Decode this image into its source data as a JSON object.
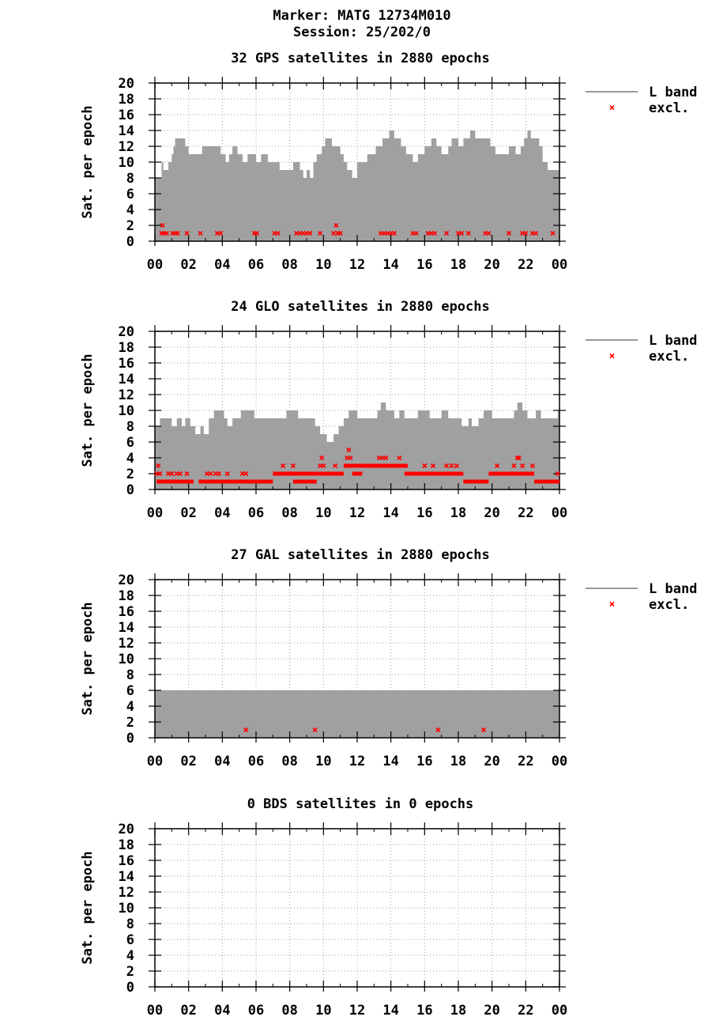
{
  "header": {
    "marker": "Marker: MATG 12734M010",
    "session": "Session: 25/202/0"
  },
  "colors": {
    "fill": "#a0a0a0",
    "excl": "#ff0000",
    "grid": "#a0a0a0",
    "axis": "#000000"
  },
  "legend": {
    "band_label": "L band",
    "excl_label": "excl."
  },
  "chart_data": [
    {
      "type": "area",
      "system": "GPS",
      "title": "32 GPS satellites in 2880 epochs",
      "ylabel": "Sat. per epoch",
      "xlabel": "",
      "xlim": [
        0,
        24
      ],
      "ylim": [
        0,
        20
      ],
      "xticks": [
        "00",
        "02",
        "04",
        "06",
        "08",
        "10",
        "12",
        "14",
        "16",
        "18",
        "20",
        "22",
        "00"
      ],
      "yticks": [
        "0",
        "2",
        "4",
        "6",
        "8",
        "10",
        "12",
        "14",
        "16",
        "18",
        "20"
      ],
      "show_legend": true,
      "band": [
        [
          0,
          8
        ],
        [
          0.4,
          10
        ],
        [
          0.5,
          9
        ],
        [
          0.8,
          10
        ],
        [
          1.0,
          11
        ],
        [
          1.1,
          12
        ],
        [
          1.2,
          13
        ],
        [
          1.8,
          12
        ],
        [
          2.0,
          11
        ],
        [
          2.8,
          12
        ],
        [
          3.9,
          11
        ],
        [
          4.2,
          10
        ],
        [
          4.4,
          11
        ],
        [
          4.6,
          12
        ],
        [
          4.9,
          11
        ],
        [
          5.2,
          10
        ],
        [
          5.5,
          11
        ],
        [
          6.0,
          10
        ],
        [
          6.3,
          11
        ],
        [
          6.7,
          10
        ],
        [
          7.0,
          10
        ],
        [
          7.4,
          9
        ],
        [
          8.0,
          9
        ],
        [
          8.2,
          10
        ],
        [
          8.6,
          9
        ],
        [
          8.8,
          8
        ],
        [
          9.0,
          9
        ],
        [
          9.2,
          8
        ],
        [
          9.4,
          10
        ],
        [
          9.6,
          11
        ],
        [
          9.9,
          12
        ],
        [
          10.1,
          13
        ],
        [
          10.5,
          12
        ],
        [
          11.0,
          11
        ],
        [
          11.2,
          10
        ],
        [
          11.4,
          9
        ],
        [
          11.7,
          8
        ],
        [
          12.0,
          10
        ],
        [
          12.6,
          11
        ],
        [
          13.1,
          12
        ],
        [
          13.5,
          13
        ],
        [
          13.9,
          14
        ],
        [
          14.2,
          13
        ],
        [
          14.6,
          12
        ],
        [
          14.9,
          11
        ],
        [
          15.3,
          10
        ],
        [
          15.6,
          11
        ],
        [
          16.0,
          12
        ],
        [
          16.4,
          13
        ],
        [
          16.7,
          12
        ],
        [
          17.0,
          11
        ],
        [
          17.4,
          12
        ],
        [
          17.6,
          13
        ],
        [
          18.0,
          12
        ],
        [
          18.3,
          13
        ],
        [
          18.7,
          14
        ],
        [
          19.0,
          13
        ],
        [
          19.9,
          12
        ],
        [
          20.2,
          11
        ],
        [
          20.6,
          11
        ],
        [
          21.0,
          12
        ],
        [
          21.4,
          11
        ],
        [
          21.7,
          12
        ],
        [
          21.9,
          13
        ],
        [
          22.1,
          14
        ],
        [
          22.3,
          13
        ],
        [
          22.8,
          12
        ],
        [
          23.0,
          10
        ],
        [
          23.3,
          9
        ],
        [
          23.6,
          9
        ],
        [
          24,
          9
        ]
      ],
      "excl": [
        [
          0.4,
          1
        ],
        [
          0.45,
          2
        ],
        [
          0.55,
          1
        ],
        [
          0.7,
          1
        ],
        [
          1.05,
          1
        ],
        [
          1.2,
          1
        ],
        [
          1.35,
          1
        ],
        [
          1.9,
          1
        ],
        [
          2.7,
          1
        ],
        [
          3.7,
          1
        ],
        [
          3.9,
          1
        ],
        [
          5.9,
          1
        ],
        [
          6.05,
          1
        ],
        [
          7.1,
          1
        ],
        [
          7.3,
          1
        ],
        [
          8.4,
          1
        ],
        [
          8.6,
          1
        ],
        [
          8.8,
          1
        ],
        [
          9.0,
          1
        ],
        [
          9.2,
          1
        ],
        [
          9.8,
          1
        ],
        [
          10.6,
          1
        ],
        [
          10.75,
          2
        ],
        [
          10.85,
          1
        ],
        [
          11.0,
          1
        ],
        [
          13.4,
          1
        ],
        [
          13.6,
          1
        ],
        [
          13.8,
          1
        ],
        [
          14.0,
          1
        ],
        [
          14.2,
          1
        ],
        [
          15.3,
          1
        ],
        [
          15.5,
          1
        ],
        [
          16.2,
          1
        ],
        [
          16.4,
          1
        ],
        [
          16.6,
          1
        ],
        [
          17.3,
          1
        ],
        [
          18.0,
          1
        ],
        [
          18.2,
          1
        ],
        [
          18.6,
          1
        ],
        [
          19.6,
          1
        ],
        [
          19.8,
          1
        ],
        [
          21.0,
          1
        ],
        [
          21.8,
          1
        ],
        [
          22.0,
          1
        ],
        [
          22.4,
          1
        ],
        [
          22.6,
          1
        ],
        [
          23.6,
          1
        ]
      ]
    },
    {
      "type": "area",
      "system": "GLO",
      "title": "24 GLO satellites in 2880 epochs",
      "ylabel": "Sat. per epoch",
      "xlabel": "",
      "xlim": [
        0,
        24
      ],
      "ylim": [
        0,
        20
      ],
      "xticks": [
        "00",
        "02",
        "04",
        "06",
        "08",
        "10",
        "12",
        "14",
        "16",
        "18",
        "20",
        "22",
        "00"
      ],
      "yticks": [
        "0",
        "2",
        "4",
        "6",
        "8",
        "10",
        "12",
        "14",
        "16",
        "18",
        "20"
      ],
      "show_legend": true,
      "band": [
        [
          0,
          8
        ],
        [
          0.3,
          9
        ],
        [
          1.0,
          8
        ],
        [
          1.3,
          9
        ],
        [
          1.6,
          8
        ],
        [
          1.8,
          9
        ],
        [
          2.1,
          8
        ],
        [
          2.4,
          7
        ],
        [
          2.7,
          8
        ],
        [
          2.9,
          7
        ],
        [
          3.2,
          9
        ],
        [
          3.5,
          10
        ],
        [
          4.1,
          9
        ],
        [
          4.3,
          8
        ],
        [
          4.6,
          9
        ],
        [
          5.1,
          10
        ],
        [
          5.6,
          10
        ],
        [
          5.9,
          9
        ],
        [
          6.6,
          9
        ],
        [
          7.1,
          9
        ],
        [
          7.4,
          9
        ],
        [
          7.8,
          10
        ],
        [
          8.5,
          9
        ],
        [
          9.0,
          9
        ],
        [
          9.5,
          8
        ],
        [
          9.8,
          7
        ],
        [
          10.2,
          6
        ],
        [
          10.6,
          7
        ],
        [
          10.9,
          8
        ],
        [
          11.2,
          9
        ],
        [
          11.5,
          10
        ],
        [
          12.0,
          9
        ],
        [
          13.0,
          9
        ],
        [
          13.2,
          10
        ],
        [
          13.4,
          11
        ],
        [
          13.7,
          10
        ],
        [
          14.2,
          9
        ],
        [
          14.5,
          10
        ],
        [
          14.8,
          9
        ],
        [
          15.6,
          10
        ],
        [
          16.0,
          10
        ],
        [
          16.3,
          9
        ],
        [
          16.6,
          9
        ],
        [
          17.0,
          10
        ],
        [
          17.4,
          9
        ],
        [
          17.8,
          9
        ],
        [
          18.2,
          8
        ],
        [
          18.6,
          9
        ],
        [
          18.8,
          8
        ],
        [
          19.2,
          9
        ],
        [
          19.5,
          10
        ],
        [
          20.0,
          9
        ],
        [
          20.6,
          9
        ],
        [
          21.0,
          9
        ],
        [
          21.3,
          10
        ],
        [
          21.5,
          11
        ],
        [
          21.8,
          10
        ],
        [
          22.1,
          9
        ],
        [
          22.6,
          10
        ],
        [
          22.9,
          9
        ],
        [
          23.5,
          9
        ],
        [
          23.9,
          10
        ],
        [
          24,
          11
        ]
      ],
      "runs": [
        {
          "from": 0.1,
          "to": 2.3,
          "y": 1
        },
        {
          "from": 2.6,
          "to": 7.0,
          "y": 1
        },
        {
          "from": 7.0,
          "to": 11.2,
          "y": 2
        },
        {
          "from": 8.2,
          "to": 9.6,
          "y": 1
        },
        {
          "from": 11.2,
          "to": 15.0,
          "y": 3
        },
        {
          "from": 11.7,
          "to": 12.3,
          "y": 2
        },
        {
          "from": 14.8,
          "to": 18.3,
          "y": 2
        },
        {
          "from": 18.3,
          "to": 19.8,
          "y": 1
        },
        {
          "from": 19.8,
          "to": 22.5,
          "y": 2
        },
        {
          "from": 22.5,
          "to": 24.0,
          "y": 1
        }
      ],
      "excl": [
        [
          0.1,
          2
        ],
        [
          0.2,
          3
        ],
        [
          0.3,
          2
        ],
        [
          0.8,
          2
        ],
        [
          1.0,
          2
        ],
        [
          1.3,
          2
        ],
        [
          1.5,
          2
        ],
        [
          1.9,
          2
        ],
        [
          3.1,
          2
        ],
        [
          3.3,
          2
        ],
        [
          3.6,
          2
        ],
        [
          3.8,
          2
        ],
        [
          4.3,
          2
        ],
        [
          5.2,
          2
        ],
        [
          5.4,
          2
        ],
        [
          7.6,
          3
        ],
        [
          8.0,
          2
        ],
        [
          8.2,
          3
        ],
        [
          9.8,
          3
        ],
        [
          9.9,
          4
        ],
        [
          10.0,
          3
        ],
        [
          10.7,
          3
        ],
        [
          11.4,
          4
        ],
        [
          11.5,
          5
        ],
        [
          11.6,
          4
        ],
        [
          13.3,
          4
        ],
        [
          13.5,
          4
        ],
        [
          13.7,
          4
        ],
        [
          14.5,
          4
        ],
        [
          16.0,
          3
        ],
        [
          16.5,
          3
        ],
        [
          17.3,
          3
        ],
        [
          17.6,
          3
        ],
        [
          17.9,
          3
        ],
        [
          20.3,
          3
        ],
        [
          21.3,
          3
        ],
        [
          21.5,
          4
        ],
        [
          21.6,
          4
        ],
        [
          21.8,
          3
        ],
        [
          22.4,
          3
        ],
        [
          23.9,
          2
        ]
      ]
    },
    {
      "type": "area",
      "system": "GAL",
      "title": "27 GAL satellites in 2880 epochs",
      "ylabel": "Sat. per epoch",
      "xlabel": "",
      "xlim": [
        0,
        24
      ],
      "ylim": [
        0,
        20
      ],
      "xticks": [
        "00",
        "02",
        "04",
        "06",
        "08",
        "10",
        "12",
        "14",
        "16",
        "18",
        "20",
        "22",
        "00"
      ],
      "yticks": [
        "0",
        "2",
        "4",
        "6",
        "8",
        "10",
        "12",
        "14",
        "16",
        "18",
        "20"
      ],
      "show_legend": true,
      "band": [
        [
          0,
          6
        ],
        [
          24,
          6
        ]
      ],
      "excl": [
        [
          5.4,
          1
        ],
        [
          9.5,
          1
        ],
        [
          16.8,
          1
        ],
        [
          19.5,
          1
        ]
      ]
    },
    {
      "type": "area",
      "system": "BDS",
      "title": "0 BDS satellites in 0 epochs",
      "ylabel": "Sat. per epoch",
      "xlabel": "",
      "xlim": [
        0,
        24
      ],
      "ylim": [
        0,
        20
      ],
      "xticks": [
        "00",
        "02",
        "04",
        "06",
        "08",
        "10",
        "12",
        "14",
        "16",
        "18",
        "20",
        "22",
        "00"
      ],
      "yticks": [
        "0",
        "2",
        "4",
        "6",
        "8",
        "10",
        "12",
        "14",
        "16",
        "18",
        "20"
      ],
      "show_legend": false,
      "band": [],
      "excl": []
    }
  ]
}
